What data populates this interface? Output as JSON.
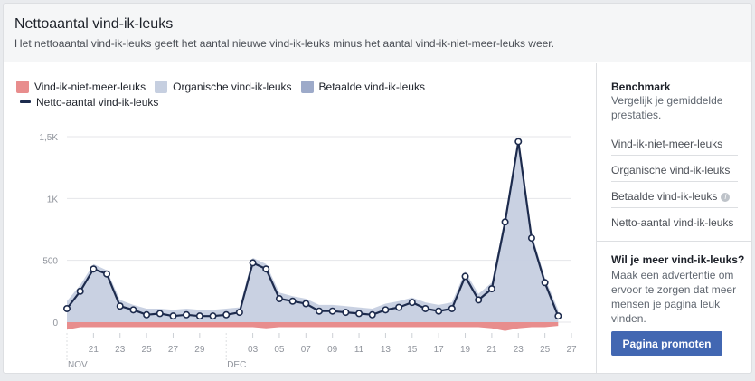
{
  "header": {
    "title": "Nettoaantal vind-ik-leuks",
    "subtitle": "Het nettoaantal vind-ik-leuks geeft het aantal nieuwe vind-ik-leuks minus het aantal vind-ik-niet-meer-leuks weer."
  },
  "legend": {
    "unlikes": "Vind-ik-niet-meer-leuks",
    "organic": "Organische vind-ik-leuks",
    "paid": "Betaalde vind-ik-leuks",
    "net": "Netto-aantal vind-ik-leuks"
  },
  "colors": {
    "unlikes": "#e88d8d",
    "organic": "#c6cfe0",
    "paid": "#9daac9",
    "net_line": "#1d2b4d",
    "button": "#4267b2"
  },
  "sidebar": {
    "benchmark_title": "Benchmark",
    "benchmark_desc": "Vergelijk je gemiddelde prestaties.",
    "links": [
      "Vind-ik-niet-meer-leuks",
      "Organische vind-ik-leuks",
      "Betaalde vind-ik-leuks",
      "Netto-aantal vind-ik-leuks"
    ]
  },
  "promo": {
    "title": "Wil je meer vind-ik-leuks?",
    "text": "Maak een advertentie om ervoor te zorgen dat meer mensen je pagina leuk vinden.",
    "button": "Pagina promoten"
  },
  "chart_data": {
    "type": "area",
    "y_ticks": [
      "0",
      "500",
      "1K",
      "1,5K"
    ],
    "ylim": [
      0,
      1500
    ],
    "x_tick_labels": [
      "21",
      "23",
      "25",
      "27",
      "29",
      "03",
      "05",
      "07",
      "09",
      "11",
      "13",
      "15",
      "17",
      "19",
      "21",
      "23",
      "25",
      "27"
    ],
    "x_tick_days": [
      2,
      4,
      6,
      8,
      10,
      14,
      16,
      18,
      20,
      22,
      24,
      26,
      28,
      30,
      32,
      34,
      36,
      38
    ],
    "month_labels": [
      "NOV",
      "DEC"
    ],
    "month_start_days": [
      0,
      12
    ],
    "x_days": [
      0,
      1,
      2,
      3,
      4,
      5,
      6,
      7,
      8,
      9,
      10,
      11,
      12,
      13,
      14,
      15,
      16,
      17,
      18,
      19,
      20,
      21,
      22,
      23,
      24,
      25,
      26,
      27,
      28,
      29,
      30,
      31,
      32,
      33,
      34,
      35,
      36,
      37,
      38
    ],
    "series": [
      {
        "name": "Netto-aantal vind-ik-leuks",
        "values": [
          110,
          250,
          430,
          390,
          130,
          100,
          60,
          70,
          50,
          60,
          50,
          50,
          60,
          80,
          480,
          430,
          190,
          170,
          150,
          90,
          90,
          80,
          70,
          60,
          100,
          120,
          160,
          110,
          90,
          110,
          370,
          180,
          270,
          810,
          1460,
          680,
          320,
          50,
          null
        ]
      },
      {
        "name": "Organische vind-ik-leuks",
        "values": [
          170,
          300,
          470,
          420,
          180,
          140,
          110,
          110,
          100,
          110,
          100,
          100,
          110,
          120,
          520,
          470,
          240,
          210,
          190,
          140,
          140,
          130,
          120,
          110,
          150,
          170,
          200,
          160,
          140,
          160,
          410,
          230,
          320,
          850,
          1500,
          720,
          360,
          100,
          null
        ]
      },
      {
        "name": "Vind-ik-niet-meer-leuks",
        "values": [
          -60,
          -40,
          -40,
          -40,
          -40,
          -40,
          -40,
          -40,
          -40,
          -40,
          -40,
          -40,
          -40,
          -40,
          -40,
          -50,
          -40,
          -40,
          -40,
          -40,
          -40,
          -40,
          -40,
          -40,
          -40,
          -40,
          -40,
          -40,
          -40,
          -40,
          -40,
          -40,
          -50,
          -70,
          -50,
          -40,
          -40,
          -30,
          null
        ]
      }
    ]
  }
}
